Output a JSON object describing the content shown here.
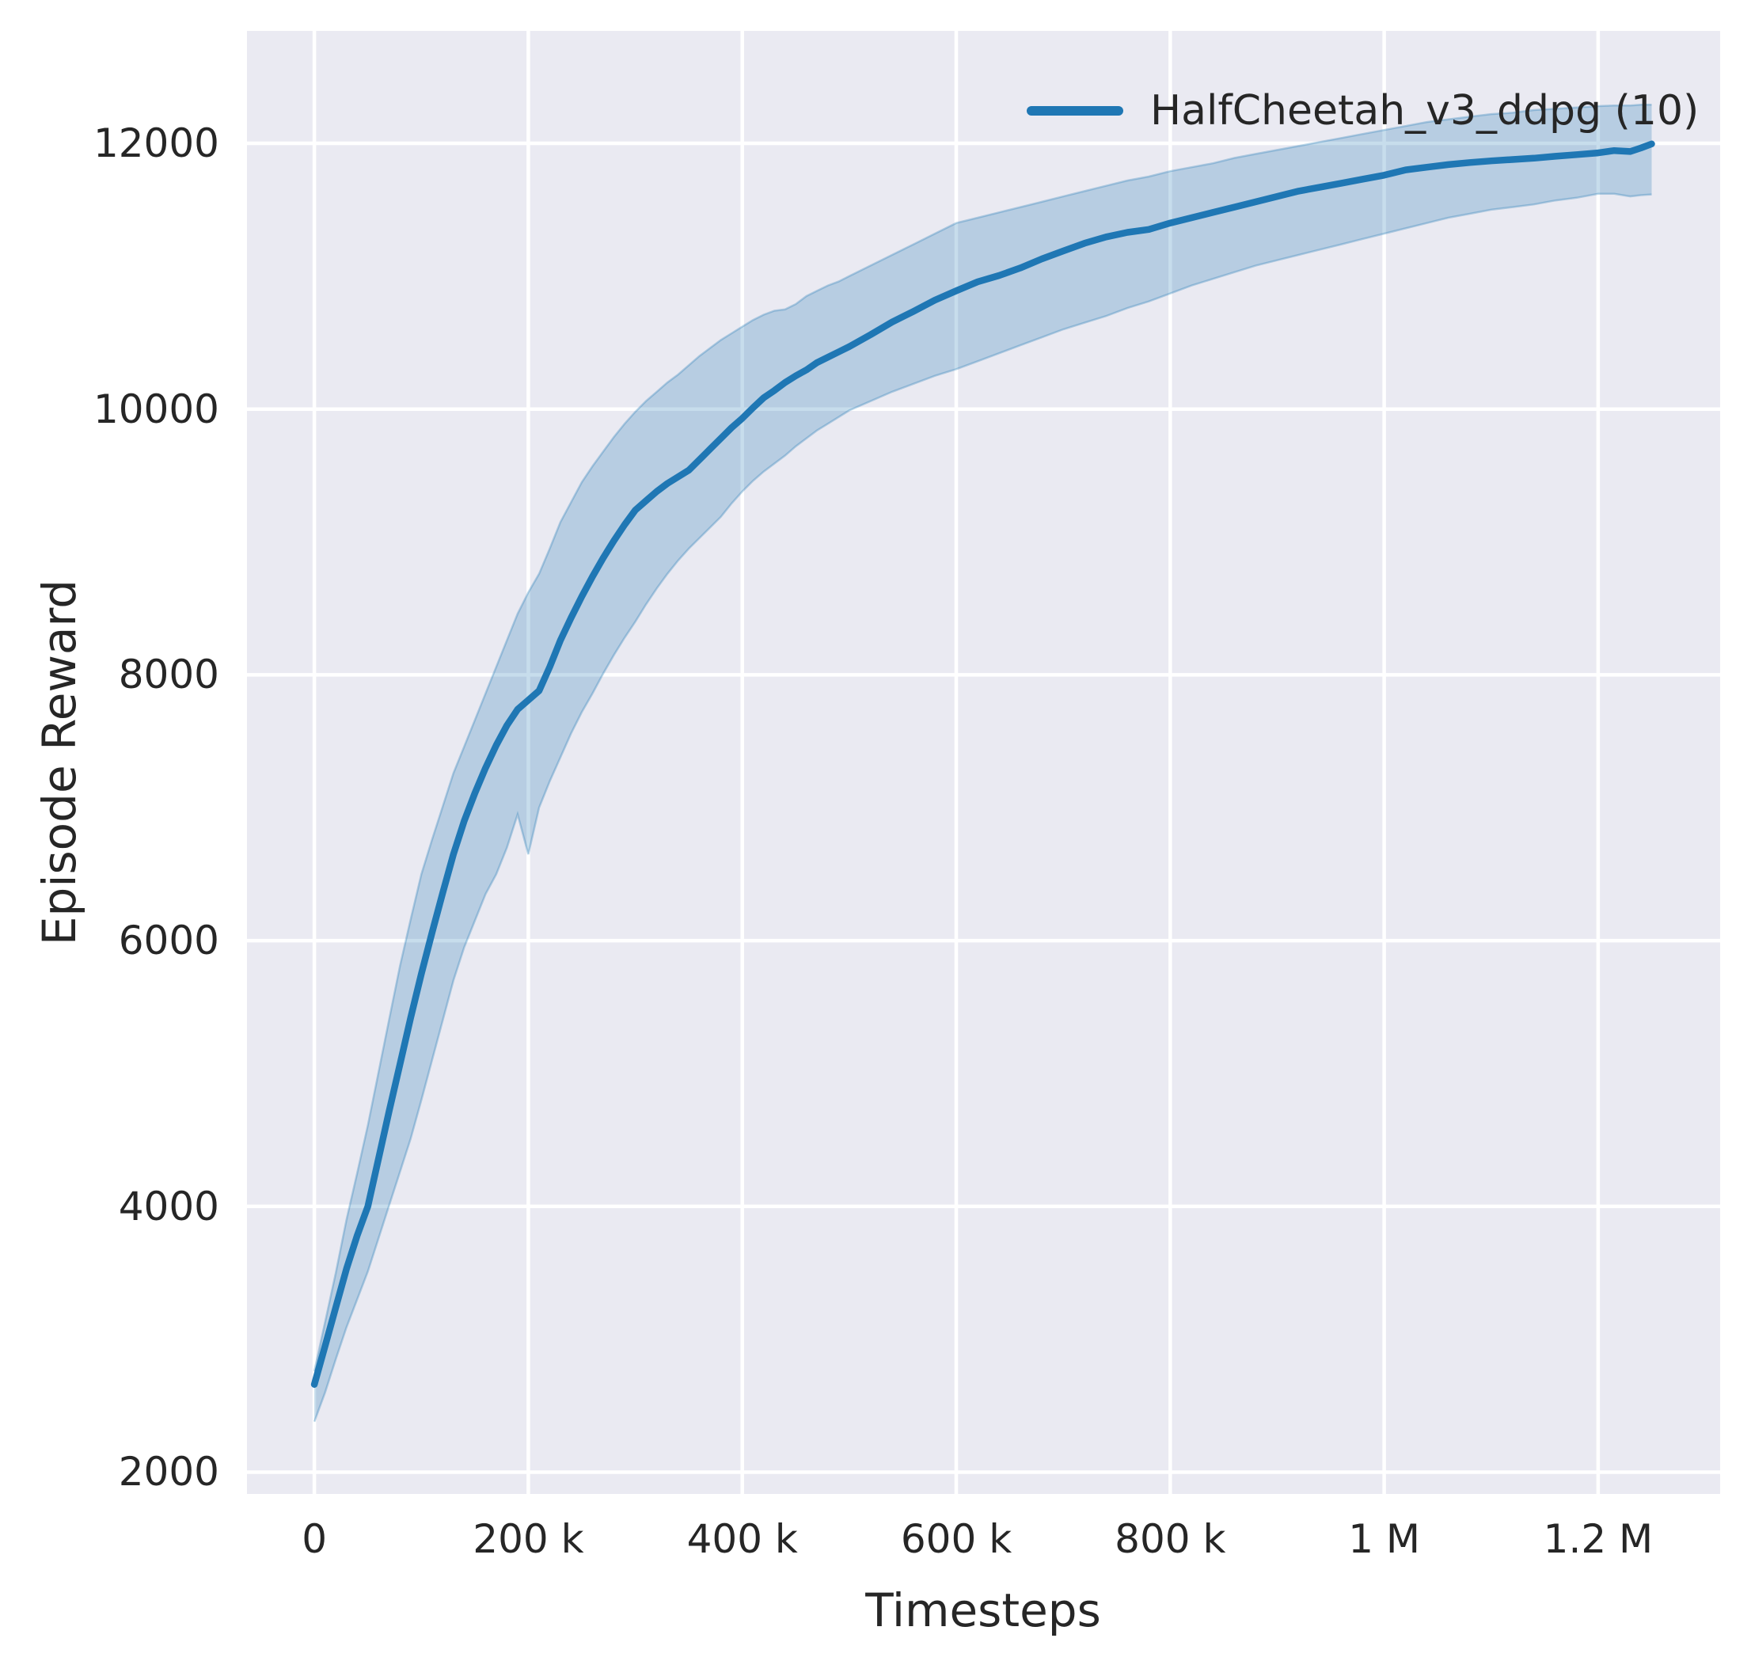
{
  "chart_data": {
    "type": "line",
    "title": "",
    "xlabel": "Timesteps",
    "ylabel": "Episode Reward",
    "grid": true,
    "legend_position": "upper right",
    "legend": [
      {
        "label": "HalfCheetah_v3_ddpg (10)",
        "color": "#1f77b4"
      }
    ],
    "xlim": [
      -63000,
      1314000
    ],
    "ylim": [
      1836,
      12846
    ],
    "x_ticks": {
      "values": [
        0,
        200000,
        400000,
        600000,
        800000,
        1000000,
        1200000
      ],
      "labels": [
        "0",
        "200 k",
        "400 k",
        "600 k",
        "800 k",
        "1 M",
        "1.2 M"
      ]
    },
    "y_ticks": {
      "values": [
        2000,
        4000,
        6000,
        8000,
        10000,
        12000
      ],
      "labels": [
        "2000",
        "4000",
        "6000",
        "8000",
        "10000",
        "12000"
      ]
    },
    "series": [
      {
        "name": "HalfCheetah_v3_ddpg (10)",
        "color": "#1f77b4",
        "band_opacity": 0.25,
        "x": [
          0,
          10000,
          20000,
          30000,
          40000,
          50000,
          60000,
          70000,
          80000,
          90000,
          100000,
          110000,
          120000,
          130000,
          140000,
          150000,
          160000,
          170000,
          180000,
          190000,
          200000,
          210000,
          220000,
          230000,
          240000,
          250000,
          260000,
          270000,
          280000,
          290000,
          300000,
          310000,
          320000,
          330000,
          340000,
          350000,
          360000,
          370000,
          380000,
          390000,
          400000,
          410000,
          420000,
          430000,
          440000,
          450000,
          460000,
          470000,
          480000,
          490000,
          500000,
          520000,
          540000,
          560000,
          580000,
          600000,
          620000,
          640000,
          660000,
          680000,
          700000,
          720000,
          740000,
          760000,
          780000,
          800000,
          820000,
          840000,
          860000,
          880000,
          900000,
          920000,
          940000,
          960000,
          980000,
          1000000,
          1020000,
          1040000,
          1060000,
          1080000,
          1100000,
          1120000,
          1140000,
          1160000,
          1180000,
          1200000,
          1215000,
          1230000,
          1240000,
          1250000
        ],
        "mean": [
          2660,
          2950,
          3240,
          3530,
          3780,
          4000,
          4360,
          4720,
          5070,
          5420,
          5750,
          6060,
          6360,
          6650,
          6900,
          7110,
          7300,
          7470,
          7620,
          7740,
          7810,
          7880,
          8060,
          8260,
          8430,
          8590,
          8740,
          8880,
          9010,
          9130,
          9240,
          9310,
          9380,
          9440,
          9490,
          9540,
          9620,
          9700,
          9780,
          9860,
          9930,
          10010,
          10085,
          10140,
          10200,
          10250,
          10295,
          10350,
          10390,
          10430,
          10470,
          10560,
          10655,
          10735,
          10820,
          10890,
          10958,
          11005,
          11062,
          11130,
          11190,
          11248,
          11295,
          11330,
          11352,
          11400,
          11440,
          11480,
          11520,
          11560,
          11600,
          11640,
          11670,
          11700,
          11730,
          11760,
          11800,
          11820,
          11840,
          11855,
          11868,
          11878,
          11888,
          11902,
          11915,
          11928,
          11945,
          11938,
          11965,
          11995
        ],
        "lower": [
          2380,
          2600,
          2850,
          3090,
          3300,
          3510,
          3760,
          4010,
          4260,
          4510,
          4800,
          5100,
          5400,
          5700,
          5950,
          6150,
          6350,
          6500,
          6700,
          6950,
          6650,
          7000,
          7200,
          7380,
          7560,
          7720,
          7860,
          8010,
          8150,
          8280,
          8400,
          8530,
          8650,
          8760,
          8860,
          8950,
          9030,
          9110,
          9190,
          9290,
          9380,
          9460,
          9530,
          9590,
          9650,
          9720,
          9780,
          9840,
          9890,
          9940,
          9990,
          10060,
          10130,
          10190,
          10250,
          10300,
          10360,
          10420,
          10480,
          10540,
          10600,
          10650,
          10700,
          10760,
          10810,
          10870,
          10930,
          10980,
          11030,
          11080,
          11120,
          11160,
          11200,
          11240,
          11280,
          11320,
          11360,
          11400,
          11440,
          11470,
          11500,
          11520,
          11540,
          11570,
          11590,
          11620,
          11620,
          11600,
          11610,
          11615
        ],
        "upper": [
          2760,
          3130,
          3500,
          3900,
          4250,
          4610,
          5010,
          5410,
          5810,
          6160,
          6500,
          6760,
          7010,
          7260,
          7460,
          7660,
          7860,
          8060,
          8260,
          8460,
          8620,
          8760,
          8950,
          9150,
          9300,
          9450,
          9570,
          9680,
          9790,
          9890,
          9980,
          10060,
          10130,
          10200,
          10260,
          10330,
          10400,
          10460,
          10520,
          10570,
          10620,
          10670,
          10710,
          10740,
          10750,
          10790,
          10850,
          10890,
          10930,
          10960,
          11000,
          11080,
          11160,
          11240,
          11320,
          11400,
          11440,
          11480,
          11520,
          11560,
          11600,
          11640,
          11680,
          11720,
          11750,
          11790,
          11820,
          11850,
          11890,
          11920,
          11950,
          11980,
          12010,
          12040,
          12070,
          12100,
          12130,
          12160,
          12180,
          12200,
          12220,
          12230,
          12250,
          12260,
          12270,
          12280,
          12285,
          12285,
          12290,
          12290
        ]
      }
    ],
    "styles": {
      "figure_bg": "#ffffff",
      "plot_bg": "#eaeaf2",
      "grid_color": "#ffffff",
      "text_color": "#262626",
      "line_color": "#1f77b4"
    }
  }
}
